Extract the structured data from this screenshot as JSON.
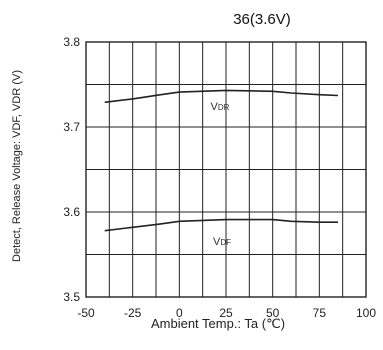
{
  "chart_data": {
    "type": "line",
    "title": "36(3.6V)",
    "xlabel": "Ambient Temp.: Ta (℃)",
    "ylabel": "Detect, Release Voltage: VDF, VDR (V)",
    "xlim": [
      -50,
      100
    ],
    "ylim": [
      3.5,
      3.8
    ],
    "x_ticks": [
      "-50",
      "-25",
      "0",
      "25",
      "50",
      "75",
      "100"
    ],
    "y_ticks": [
      "3.5",
      "3.6",
      "3.7",
      "3.8"
    ],
    "grid": true,
    "series": [
      {
        "name": "VDR",
        "x": [
          -40,
          -25,
          -10,
          0,
          25,
          50,
          60,
          75,
          85
        ],
        "y": [
          3.729,
          3.733,
          3.738,
          3.741,
          3.743,
          3.742,
          3.74,
          3.738,
          3.737
        ]
      },
      {
        "name": "VDF",
        "x": [
          -40,
          -25,
          -10,
          0,
          25,
          50,
          60,
          75,
          85
        ],
        "y": [
          3.578,
          3.582,
          3.586,
          3.589,
          3.591,
          3.591,
          3.589,
          3.588,
          3.588
        ]
      }
    ],
    "series_labels": {
      "VDR": {
        "main": "V",
        "sub": "DR"
      },
      "VDF": {
        "main": "V",
        "sub": "DF"
      }
    },
    "line_color": "#222222",
    "grid_color": "#222222"
  }
}
